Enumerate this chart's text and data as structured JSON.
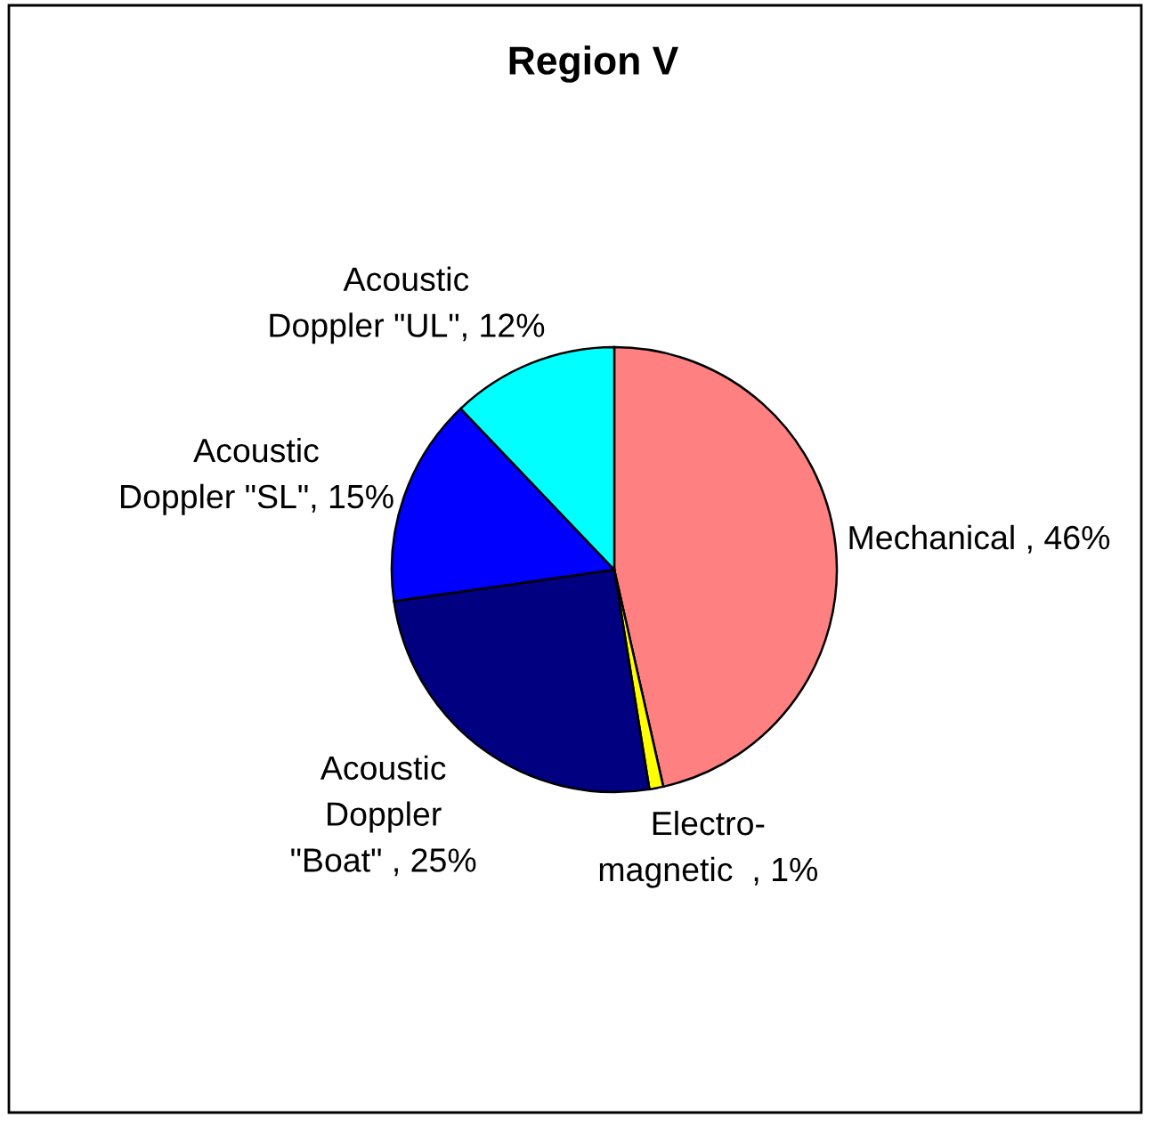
{
  "chart_data": {
    "type": "pie",
    "title": "Region V",
    "categories": [
      "Mechanical ",
      "Electro-\nmagnetic  ",
      "Acoustic\nDoppler\n\"Boat\" ",
      "Acoustic\nDoppler \"SL\"",
      "Acoustic\nDoppler \"UL\""
    ],
    "values": [
      46,
      1,
      25,
      15,
      12
    ],
    "colors": [
      "#ff8080",
      "#ffff00",
      "#000080",
      "#0000ff",
      "#00ffff"
    ],
    "value_labels": [
      "46%",
      "1%",
      "25%",
      "15%",
      "12%"
    ]
  }
}
